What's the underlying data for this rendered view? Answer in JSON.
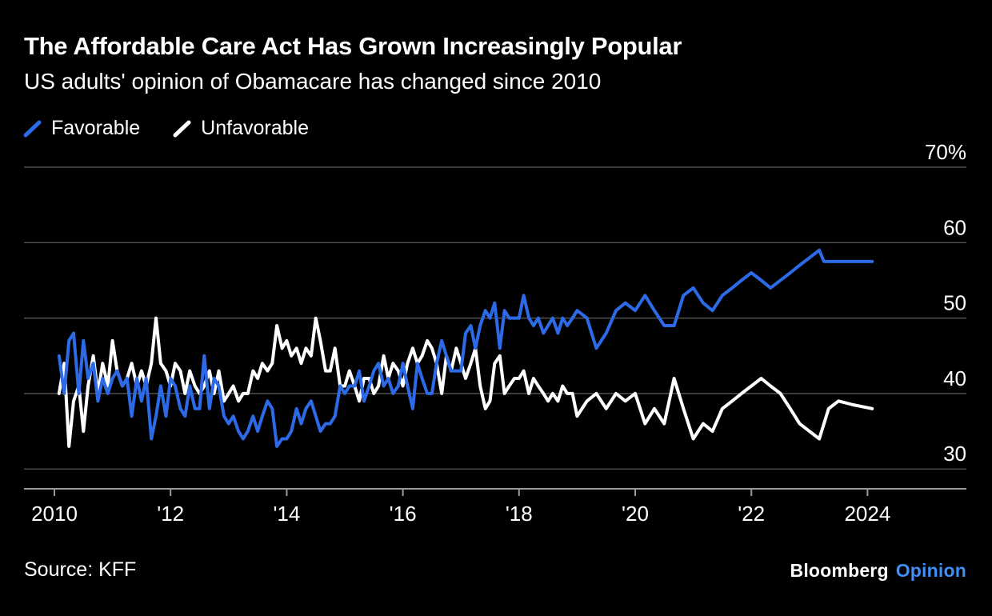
{
  "header": {
    "title": "The Affordable Care Act Has Grown Increasingly Popular",
    "subtitle": "US adults' opinion of Obamacare has changed since 2010"
  },
  "legend": [
    {
      "label": "Favorable",
      "color": "#2D6AE8"
    },
    {
      "label": "Unfavorable",
      "color": "#FFFFFF"
    }
  ],
  "footer": {
    "source": "Source: KFF",
    "brand": "Bloomberg",
    "brand_suffix": "Opinion",
    "brand_accent_color": "#3E8FFA"
  },
  "chart_data": {
    "type": "line",
    "title": "The Affordable Care Act Has Grown Increasingly Popular",
    "subtitle": "US adults' opinion of Obamacare has changed since 2010",
    "source": "KFF",
    "unit": "%",
    "grid": "horizontal",
    "legend_position": "top-left",
    "background_color": "#000000",
    "gridline_color": "#5F5F5F",
    "axis_color": "#9B9B9B",
    "x_axis": {
      "label": "",
      "ticks": [
        2010,
        2012,
        2014,
        2016,
        2018,
        2020,
        2022,
        2024
      ],
      "tick_labels": [
        "2010",
        "'12",
        "'14",
        "'16",
        "'18",
        "'20",
        "'22",
        "2024"
      ],
      "range": [
        2009.5,
        2025.7
      ]
    },
    "y_axis": {
      "label": "",
      "ticks": [
        70,
        60,
        50,
        40,
        30
      ],
      "tick_labels": [
        "70%",
        "60",
        "50",
        "40",
        "30"
      ],
      "range": [
        27,
        72
      ]
    },
    "series": [
      {
        "name": "Favorable",
        "color": "#2D6AE8",
        "points": [
          [
            2010.08,
            45
          ],
          [
            2010.17,
            40
          ],
          [
            2010.25,
            47
          ],
          [
            2010.33,
            48
          ],
          [
            2010.42,
            40
          ],
          [
            2010.5,
            47
          ],
          [
            2010.58,
            42
          ],
          [
            2010.67,
            44
          ],
          [
            2010.75,
            39
          ],
          [
            2010.83,
            42
          ],
          [
            2010.92,
            40
          ],
          [
            2011.0,
            42
          ],
          [
            2011.08,
            43
          ],
          [
            2011.17,
            41
          ],
          [
            2011.25,
            42
          ],
          [
            2011.33,
            37
          ],
          [
            2011.42,
            42
          ],
          [
            2011.5,
            39
          ],
          [
            2011.58,
            42
          ],
          [
            2011.67,
            34
          ],
          [
            2011.75,
            37
          ],
          [
            2011.83,
            41
          ],
          [
            2011.92,
            37
          ],
          [
            2012.0,
            42
          ],
          [
            2012.08,
            41
          ],
          [
            2012.17,
            38
          ],
          [
            2012.25,
            37
          ],
          [
            2012.33,
            41
          ],
          [
            2012.42,
            38
          ],
          [
            2012.5,
            38
          ],
          [
            2012.58,
            45
          ],
          [
            2012.67,
            38
          ],
          [
            2012.75,
            42
          ],
          [
            2012.83,
            41
          ],
          [
            2012.92,
            37
          ],
          [
            2013.0,
            36
          ],
          [
            2013.08,
            37
          ],
          [
            2013.17,
            35
          ],
          [
            2013.25,
            34
          ],
          [
            2013.33,
            35
          ],
          [
            2013.42,
            37
          ],
          [
            2013.5,
            35
          ],
          [
            2013.58,
            37
          ],
          [
            2013.67,
            39
          ],
          [
            2013.75,
            38
          ],
          [
            2013.83,
            33
          ],
          [
            2013.92,
            34
          ],
          [
            2014.0,
            34
          ],
          [
            2014.08,
            35
          ],
          [
            2014.17,
            38
          ],
          [
            2014.25,
            36
          ],
          [
            2014.33,
            38
          ],
          [
            2014.42,
            39
          ],
          [
            2014.5,
            37
          ],
          [
            2014.58,
            35
          ],
          [
            2014.67,
            36
          ],
          [
            2014.75,
            36
          ],
          [
            2014.83,
            37
          ],
          [
            2014.92,
            41
          ],
          [
            2015.0,
            40
          ],
          [
            2015.08,
            41
          ],
          [
            2015.17,
            41
          ],
          [
            2015.25,
            43
          ],
          [
            2015.33,
            39
          ],
          [
            2015.42,
            41
          ],
          [
            2015.5,
            43
          ],
          [
            2015.58,
            44
          ],
          [
            2015.67,
            41
          ],
          [
            2015.75,
            42
          ],
          [
            2015.83,
            40
          ],
          [
            2015.92,
            41
          ],
          [
            2016.0,
            44
          ],
          [
            2016.08,
            41
          ],
          [
            2016.17,
            38
          ],
          [
            2016.25,
            44
          ],
          [
            2016.33,
            42
          ],
          [
            2016.42,
            40
          ],
          [
            2016.5,
            40
          ],
          [
            2016.58,
            44
          ],
          [
            2016.67,
            47
          ],
          [
            2016.75,
            45
          ],
          [
            2016.83,
            43
          ],
          [
            2016.92,
            43
          ],
          [
            2017.0,
            43
          ],
          [
            2017.08,
            48
          ],
          [
            2017.17,
            49
          ],
          [
            2017.25,
            46
          ],
          [
            2017.33,
            49
          ],
          [
            2017.42,
            51
          ],
          [
            2017.5,
            50
          ],
          [
            2017.58,
            52
          ],
          [
            2017.67,
            46
          ],
          [
            2017.75,
            51
          ],
          [
            2017.83,
            50
          ],
          [
            2017.92,
            50
          ],
          [
            2018.0,
            50
          ],
          [
            2018.08,
            53
          ],
          [
            2018.17,
            50
          ],
          [
            2018.25,
            49
          ],
          [
            2018.33,
            50
          ],
          [
            2018.42,
            48
          ],
          [
            2018.5,
            49
          ],
          [
            2018.58,
            50
          ],
          [
            2018.67,
            48
          ],
          [
            2018.75,
            50
          ],
          [
            2018.83,
            49
          ],
          [
            2018.92,
            50
          ],
          [
            2019.0,
            51
          ],
          [
            2019.17,
            50
          ],
          [
            2019.33,
            46
          ],
          [
            2019.5,
            48
          ],
          [
            2019.67,
            51
          ],
          [
            2019.83,
            52
          ],
          [
            2020.0,
            51
          ],
          [
            2020.17,
            53
          ],
          [
            2020.33,
            51
          ],
          [
            2020.5,
            49
          ],
          [
            2020.67,
            49
          ],
          [
            2020.83,
            53
          ],
          [
            2021.0,
            54
          ],
          [
            2021.17,
            52
          ],
          [
            2021.33,
            51
          ],
          [
            2021.5,
            53
          ],
          [
            2021.67,
            54
          ],
          [
            2021.83,
            55
          ],
          [
            2022.0,
            56
          ],
          [
            2022.17,
            55
          ],
          [
            2022.33,
            54
          ],
          [
            2022.5,
            55
          ],
          [
            2022.67,
            56
          ],
          [
            2022.83,
            57
          ],
          [
            2023.0,
            58
          ],
          [
            2023.17,
            59
          ],
          [
            2023.25,
            57.5
          ],
          [
            2023.5,
            57.5
          ],
          [
            2023.75,
            57.5
          ],
          [
            2024.08,
            57.5
          ]
        ]
      },
      {
        "name": "Unfavorable",
        "color": "#FFFFFF",
        "points": [
          [
            2010.08,
            40
          ],
          [
            2010.17,
            44
          ],
          [
            2010.25,
            33
          ],
          [
            2010.33,
            39
          ],
          [
            2010.42,
            41
          ],
          [
            2010.5,
            35
          ],
          [
            2010.58,
            41
          ],
          [
            2010.67,
            45
          ],
          [
            2010.75,
            40
          ],
          [
            2010.83,
            44
          ],
          [
            2010.92,
            41
          ],
          [
            2011.0,
            47
          ],
          [
            2011.08,
            43
          ],
          [
            2011.17,
            41
          ],
          [
            2011.25,
            42
          ],
          [
            2011.33,
            44
          ],
          [
            2011.42,
            41
          ],
          [
            2011.5,
            43
          ],
          [
            2011.58,
            41
          ],
          [
            2011.67,
            44
          ],
          [
            2011.75,
            50
          ],
          [
            2011.83,
            44
          ],
          [
            2011.92,
            43
          ],
          [
            2012.0,
            41
          ],
          [
            2012.08,
            44
          ],
          [
            2012.17,
            43
          ],
          [
            2012.25,
            40
          ],
          [
            2012.33,
            43
          ],
          [
            2012.42,
            41
          ],
          [
            2012.5,
            40
          ],
          [
            2012.58,
            41
          ],
          [
            2012.67,
            43
          ],
          [
            2012.75,
            40
          ],
          [
            2012.83,
            43
          ],
          [
            2012.92,
            39
          ],
          [
            2013.0,
            40
          ],
          [
            2013.08,
            41
          ],
          [
            2013.17,
            39
          ],
          [
            2013.25,
            40
          ],
          [
            2013.33,
            40
          ],
          [
            2013.42,
            43
          ],
          [
            2013.5,
            42
          ],
          [
            2013.58,
            44
          ],
          [
            2013.67,
            43
          ],
          [
            2013.75,
            44
          ],
          [
            2013.83,
            49
          ],
          [
            2013.92,
            46
          ],
          [
            2014.0,
            47
          ],
          [
            2014.08,
            45
          ],
          [
            2014.17,
            46
          ],
          [
            2014.25,
            44
          ],
          [
            2014.33,
            46
          ],
          [
            2014.42,
            45
          ],
          [
            2014.5,
            50
          ],
          [
            2014.58,
            47
          ],
          [
            2014.67,
            43
          ],
          [
            2014.75,
            43
          ],
          [
            2014.83,
            46
          ],
          [
            2014.92,
            41
          ],
          [
            2015.0,
            41
          ],
          [
            2015.08,
            43
          ],
          [
            2015.17,
            41
          ],
          [
            2015.25,
            39
          ],
          [
            2015.33,
            42
          ],
          [
            2015.42,
            42
          ],
          [
            2015.5,
            40
          ],
          [
            2015.58,
            41
          ],
          [
            2015.67,
            45
          ],
          [
            2015.75,
            42
          ],
          [
            2015.83,
            44
          ],
          [
            2015.92,
            43
          ],
          [
            2016.0,
            41
          ],
          [
            2016.08,
            44
          ],
          [
            2016.17,
            46
          ],
          [
            2016.25,
            44
          ],
          [
            2016.33,
            45
          ],
          [
            2016.42,
            47
          ],
          [
            2016.5,
            46
          ],
          [
            2016.58,
            44
          ],
          [
            2016.67,
            40
          ],
          [
            2016.75,
            45
          ],
          [
            2016.83,
            43
          ],
          [
            2016.92,
            46
          ],
          [
            2017.0,
            44
          ],
          [
            2017.08,
            42
          ],
          [
            2017.17,
            44
          ],
          [
            2017.25,
            46
          ],
          [
            2017.33,
            41
          ],
          [
            2017.42,
            38
          ],
          [
            2017.5,
            39
          ],
          [
            2017.58,
            44
          ],
          [
            2017.67,
            45
          ],
          [
            2017.75,
            40
          ],
          [
            2017.83,
            41
          ],
          [
            2017.92,
            42
          ],
          [
            2018.0,
            42
          ],
          [
            2018.08,
            43
          ],
          [
            2018.17,
            40
          ],
          [
            2018.25,
            42
          ],
          [
            2018.33,
            41
          ],
          [
            2018.42,
            40
          ],
          [
            2018.5,
            39
          ],
          [
            2018.58,
            40
          ],
          [
            2018.67,
            39
          ],
          [
            2018.75,
            41
          ],
          [
            2018.83,
            40
          ],
          [
            2018.92,
            40
          ],
          [
            2019.0,
            37
          ],
          [
            2019.17,
            39
          ],
          [
            2019.33,
            40
          ],
          [
            2019.5,
            38
          ],
          [
            2019.67,
            40
          ],
          [
            2019.83,
            39
          ],
          [
            2020.0,
            40
          ],
          [
            2020.17,
            36
          ],
          [
            2020.33,
            38
          ],
          [
            2020.5,
            36
          ],
          [
            2020.67,
            42
          ],
          [
            2020.83,
            38
          ],
          [
            2021.0,
            34
          ],
          [
            2021.17,
            36
          ],
          [
            2021.33,
            35
          ],
          [
            2021.5,
            38
          ],
          [
            2021.67,
            39
          ],
          [
            2021.83,
            40
          ],
          [
            2022.0,
            41
          ],
          [
            2022.17,
            42
          ],
          [
            2022.33,
            41
          ],
          [
            2022.5,
            40
          ],
          [
            2022.67,
            38
          ],
          [
            2022.83,
            36
          ],
          [
            2023.0,
            35
          ],
          [
            2023.17,
            34
          ],
          [
            2023.33,
            38
          ],
          [
            2023.5,
            39
          ],
          [
            2023.75,
            38.5
          ],
          [
            2024.08,
            38
          ]
        ]
      }
    ]
  }
}
